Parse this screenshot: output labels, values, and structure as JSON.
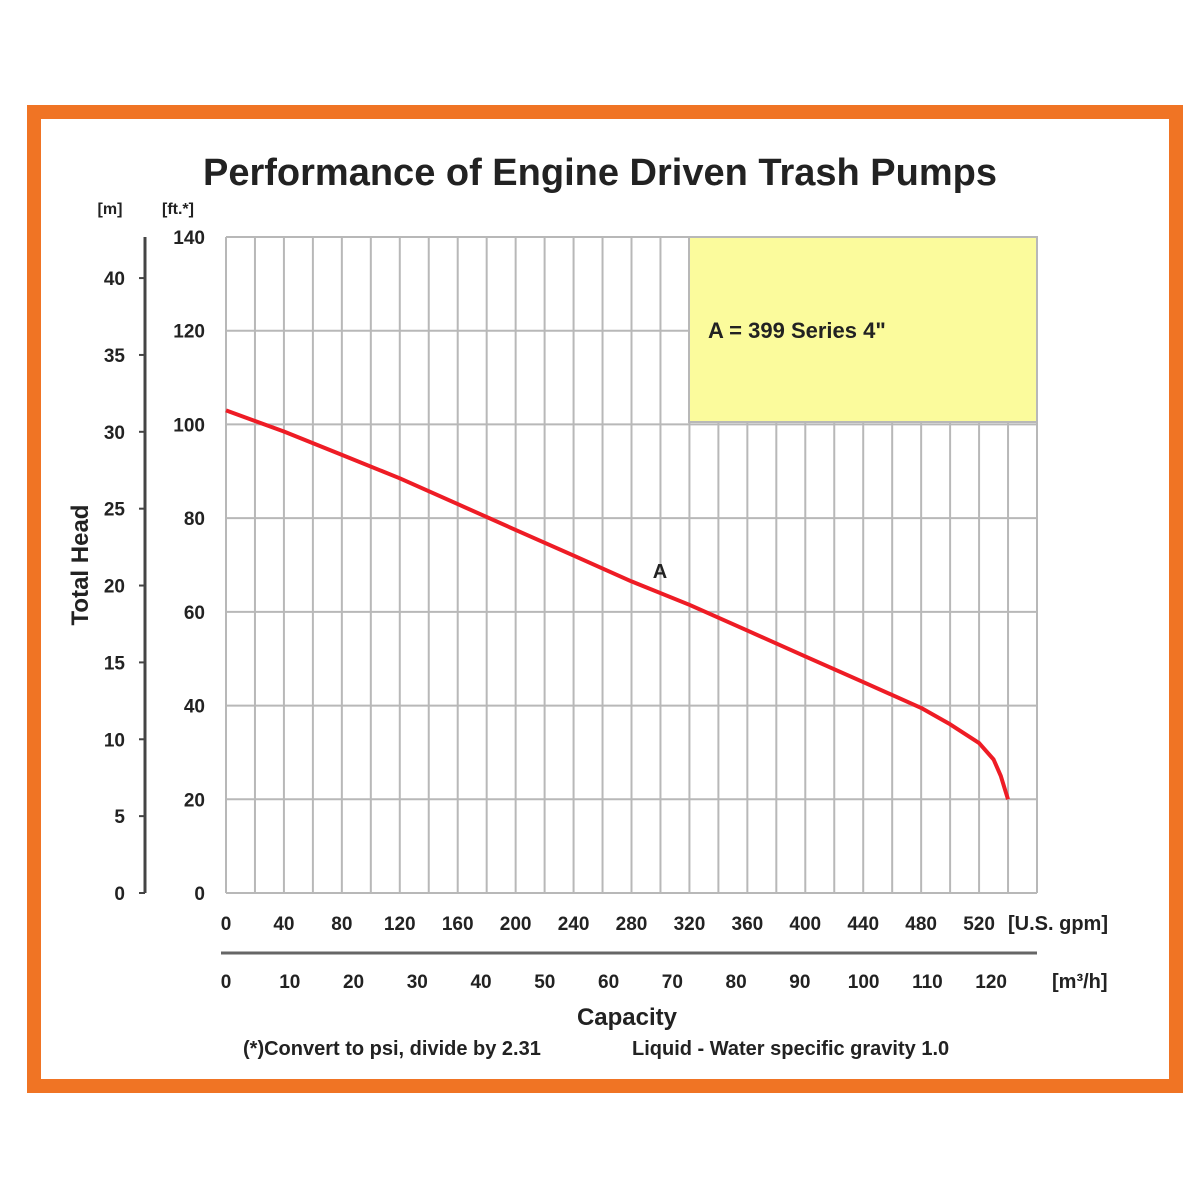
{
  "colors": {
    "frame": "#f07424",
    "curve": "#ee1c25",
    "legend_fill": "#fbfb9c",
    "grid": "#b8b8b8"
  },
  "chart_data": {
    "type": "line",
    "title": "Performance of Engine Driven Trash Pumps",
    "ylabel": "Total Head",
    "xlabel": "Capacity",
    "y_unit_ft": "[ft.*]",
    "y_unit_m": "[m]",
    "x_unit_gpm": "[U.S. gpm]",
    "x_unit_m3h": "[m³/h]",
    "ylim": [
      0,
      140
    ],
    "xlim": [
      0,
      560
    ],
    "y_ticks_ft": [
      "0",
      "20",
      "40",
      "60",
      "80",
      "100",
      "120",
      "140"
    ],
    "y_ticks_m": [
      "0",
      "5",
      "10",
      "15",
      "20",
      "25",
      "30",
      "35",
      "40"
    ],
    "x_ticks_gpm": [
      "0",
      "40",
      "80",
      "120",
      "160",
      "200",
      "240",
      "280",
      "320",
      "360",
      "400",
      "440",
      "480",
      "520"
    ],
    "x_ticks_m3h": [
      "0",
      "10",
      "20",
      "30",
      "40",
      "50",
      "60",
      "70",
      "80",
      "90",
      "100",
      "110",
      "120"
    ],
    "grid": true,
    "legend": {
      "text": "A = 399 Series 4\"",
      "placement": "top-right"
    },
    "series": [
      {
        "name": "A",
        "x": [
          0,
          40,
          80,
          120,
          160,
          200,
          240,
          280,
          320,
          360,
          400,
          440,
          480,
          500,
          520,
          530,
          535,
          538,
          540
        ],
        "y": [
          103,
          98.5,
          93.5,
          88.5,
          83,
          77.5,
          72,
          66.5,
          61.5,
          56,
          50.5,
          45,
          39.5,
          36,
          32,
          28.5,
          25,
          22,
          20
        ]
      }
    ],
    "footnote_left": "(*)Convert to psi, divide by 2.31",
    "footnote_right": "Liquid - Water specific gravity 1.0"
  }
}
